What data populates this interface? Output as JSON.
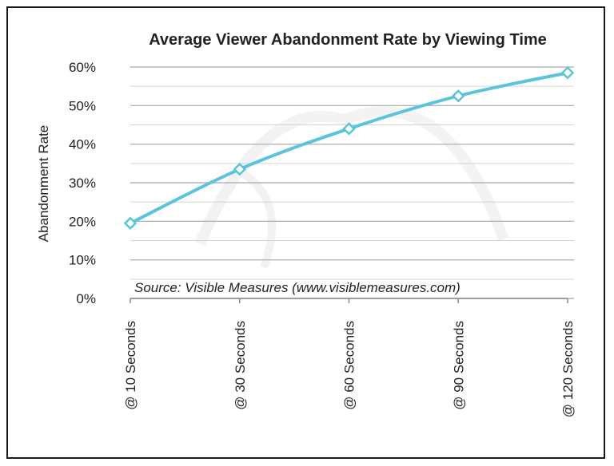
{
  "chart_data": {
    "type": "line",
    "title": "Average Viewer Abandonment Rate by Viewing Time",
    "ylabel": "Abandonment Rate",
    "xlabel": "",
    "categories": [
      "@ 10 Seconds",
      "@ 30 Seconds",
      "@ 60 Seconds",
      "@ 90 Seconds",
      "@ 120 Seconds"
    ],
    "series": [
      {
        "values": [
          19.5,
          33.5,
          44.0,
          52.5,
          58.5
        ]
      }
    ],
    "ylim": [
      0,
      60
    ],
    "yticks": [
      "0%",
      "10%",
      "20%",
      "30%",
      "40%",
      "50%",
      "60%"
    ],
    "grid": true,
    "annotation": "Source: Visible Measures (www.visiblemeasures.com)",
    "line_color": "#5bc4dd",
    "marker": "diamond"
  }
}
